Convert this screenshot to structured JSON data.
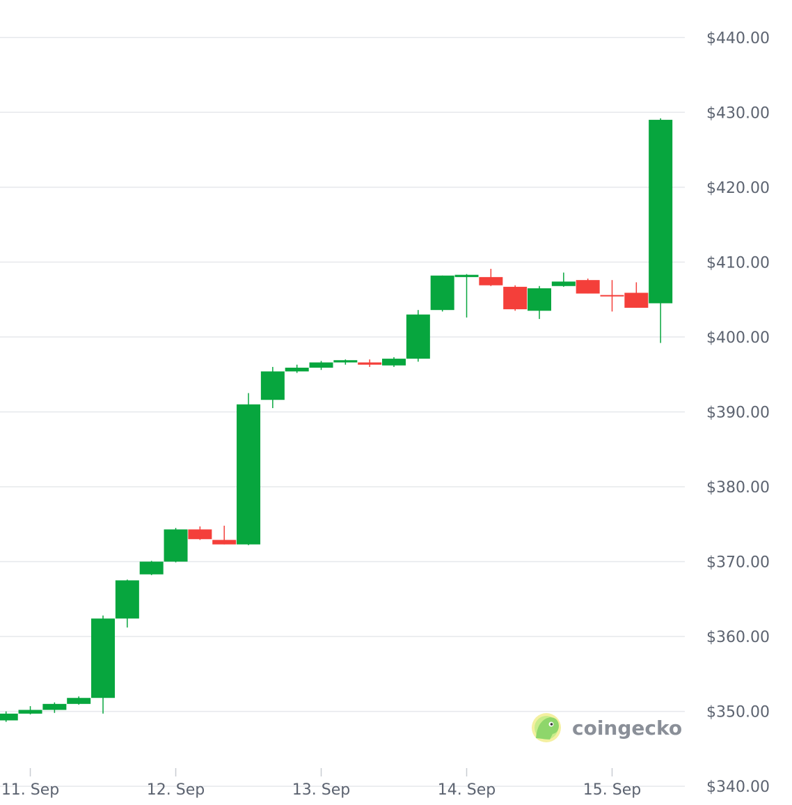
{
  "brand": {
    "watermark": "coingecko"
  },
  "colors": {
    "up": "#07a63e",
    "down": "#f43f3a",
    "grid": "#e6e8ec",
    "text": "#5c6370",
    "background": "#ffffff"
  },
  "chart_data": {
    "type": "candlestick",
    "title": "",
    "xlabel": "",
    "ylabel": "",
    "ylim": [
      337.5,
      445
    ],
    "grid": true,
    "y_axis_side": "right",
    "y_ticks": [
      340,
      350,
      360,
      370,
      380,
      390,
      400,
      410,
      420,
      430,
      440
    ],
    "y_tick_labels": [
      "$340.00",
      "$350.00",
      "$360.00",
      "$370.00",
      "$380.00",
      "$390.00",
      "$400.00",
      "$410.00",
      "$420.00",
      "$430.00",
      "$440.00"
    ],
    "x_ticks": [
      {
        "label": "11. Sep",
        "t": "2024-09-11T00:00"
      },
      {
        "label": "12. Sep",
        "t": "2024-09-12T00:00"
      },
      {
        "label": "13. Sep",
        "t": "2024-09-13T00:00"
      },
      {
        "label": "14. Sep",
        "t": "2024-09-14T00:00"
      },
      {
        "label": "15. Sep",
        "t": "2024-09-15T00:00"
      }
    ],
    "x_range": [
      "2024-09-10T19:00",
      "2024-09-15T12:00"
    ],
    "candles": [
      {
        "t": "2024-09-10T20:00",
        "open": 348.8,
        "high": 350.0,
        "low": 348.6,
        "close": 349.7
      },
      {
        "t": "2024-09-11T00:00",
        "open": 349.7,
        "high": 350.7,
        "low": 349.6,
        "close": 350.2
      },
      {
        "t": "2024-09-11T04:00",
        "open": 350.2,
        "high": 351.2,
        "low": 349.8,
        "close": 351.0
      },
      {
        "t": "2024-09-11T08:00",
        "open": 351.0,
        "high": 352.0,
        "low": 350.9,
        "close": 351.8
      },
      {
        "t": "2024-09-11T12:00",
        "open": 351.8,
        "high": 362.8,
        "low": 349.7,
        "close": 362.4
      },
      {
        "t": "2024-09-11T16:00",
        "open": 362.4,
        "high": 367.6,
        "low": 361.2,
        "close": 367.5
      },
      {
        "t": "2024-09-11T20:00",
        "open": 368.3,
        "high": 370.1,
        "low": 368.2,
        "close": 370.0
      },
      {
        "t": "2024-09-12T00:00",
        "open": 370.0,
        "high": 374.5,
        "low": 369.9,
        "close": 374.3
      },
      {
        "t": "2024-09-12T04:00",
        "open": 374.3,
        "high": 374.7,
        "low": 372.9,
        "close": 373.0
      },
      {
        "t": "2024-09-12T08:00",
        "open": 372.9,
        "high": 374.8,
        "low": 372.3,
        "close": 372.3
      },
      {
        "t": "2024-09-12T12:00",
        "open": 372.3,
        "high": 392.5,
        "low": 372.2,
        "close": 391.0
      },
      {
        "t": "2024-09-12T16:00",
        "open": 391.6,
        "high": 396.0,
        "low": 390.5,
        "close": 395.4
      },
      {
        "t": "2024-09-12T20:00",
        "open": 395.4,
        "high": 396.3,
        "low": 395.2,
        "close": 395.9
      },
      {
        "t": "2024-09-13T00:00",
        "open": 395.9,
        "high": 396.8,
        "low": 395.6,
        "close": 396.6
      },
      {
        "t": "2024-09-13T04:00",
        "open": 396.6,
        "high": 397.0,
        "low": 396.3,
        "close": 396.9
      },
      {
        "t": "2024-09-13T08:00",
        "open": 396.6,
        "high": 397.0,
        "low": 396.0,
        "close": 396.3
      },
      {
        "t": "2024-09-13T12:00",
        "open": 396.2,
        "high": 397.3,
        "low": 396.0,
        "close": 397.1
      },
      {
        "t": "2024-09-13T16:00",
        "open": 397.1,
        "high": 403.6,
        "low": 396.7,
        "close": 403.0
      },
      {
        "t": "2024-09-13T20:00",
        "open": 403.6,
        "high": 408.2,
        "low": 403.4,
        "close": 408.2
      },
      {
        "t": "2024-09-14T00:00",
        "open": 408.0,
        "high": 408.4,
        "low": 402.6,
        "close": 408.3
      },
      {
        "t": "2024-09-14T04:00",
        "open": 408.0,
        "high": 409.1,
        "low": 406.8,
        "close": 406.9
      },
      {
        "t": "2024-09-14T08:00",
        "open": 406.7,
        "high": 406.9,
        "low": 403.5,
        "close": 403.7
      },
      {
        "t": "2024-09-14T12:00",
        "open": 403.5,
        "high": 406.8,
        "low": 402.4,
        "close": 406.5
      },
      {
        "t": "2024-09-14T16:00",
        "open": 406.8,
        "high": 408.6,
        "low": 406.7,
        "close": 407.4
      },
      {
        "t": "2024-09-14T20:00",
        "open": 407.6,
        "high": 407.8,
        "low": 405.8,
        "close": 405.8
      },
      {
        "t": "2024-09-15T00:00",
        "open": 405.6,
        "high": 407.6,
        "low": 403.4,
        "close": 405.5
      },
      {
        "t": "2024-09-15T04:00",
        "open": 405.9,
        "high": 407.3,
        "low": 403.9,
        "close": 403.9
      },
      {
        "t": "2024-09-15T08:00",
        "open": 404.5,
        "high": 429.2,
        "low": 399.2,
        "close": 429.0
      }
    ]
  }
}
